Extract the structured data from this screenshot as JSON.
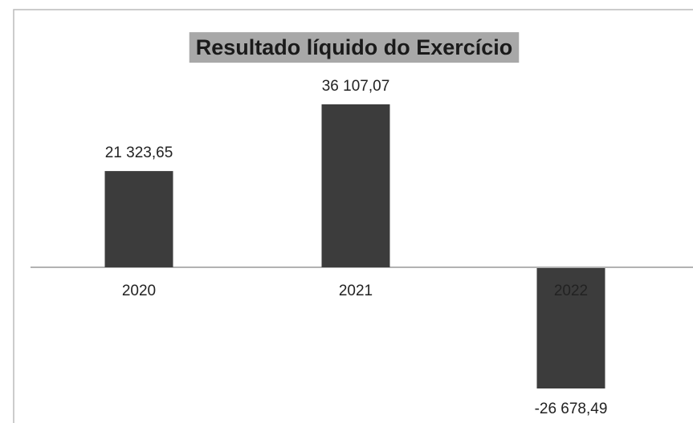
{
  "chart_data": {
    "type": "bar",
    "title": "Resultado líquido do Exercício",
    "categories": [
      "2020",
      "2021",
      "2022"
    ],
    "values": [
      21323.65,
      36107.07,
      -26678.49
    ],
    "value_labels": [
      "21 323,65",
      "36 107,07",
      "-26 678,49"
    ],
    "color": "#3c3c3c"
  }
}
